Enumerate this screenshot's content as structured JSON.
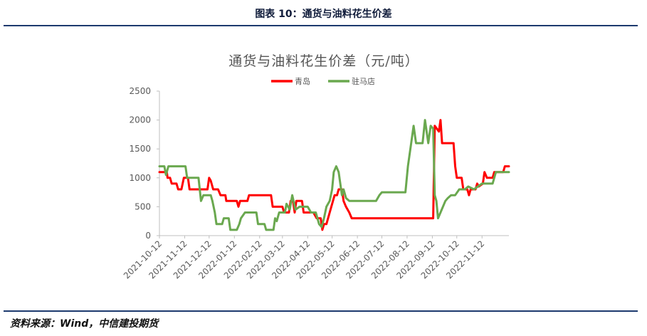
{
  "header": {
    "figure_title": "图表 10：通货与油料花生价差"
  },
  "footer": {
    "source": "资料来源：Wind，中信建投期货"
  },
  "chart_data": {
    "type": "line",
    "title": "通货与油料花生价差（元/吨）",
    "xlabel": "",
    "ylabel": "",
    "ylim": [
      0,
      2500
    ],
    "y_ticks": [
      0,
      500,
      1000,
      1500,
      2000,
      2500
    ],
    "x_range": [
      "2021-10-12",
      "2022-12-15"
    ],
    "x_tick_labels": [
      "2021-10-12",
      "2021-11-12",
      "2021-12-12",
      "2022-01-12",
      "2022-02-12",
      "2022-03-12",
      "2022-04-12",
      "2022-05-12",
      "2022-06-12",
      "2022-07-12",
      "2022-08-12",
      "2022-09-12",
      "2022-10-12",
      "2022-11-12"
    ],
    "grid": false,
    "legend_position": "top-center",
    "series": [
      {
        "name": "青岛",
        "color": "#ff0000",
        "points": [
          [
            "2021-10-12",
            1100
          ],
          [
            "2021-10-21",
            1100
          ],
          [
            "2021-10-22",
            1000
          ],
          [
            "2021-10-25",
            1000
          ],
          [
            "2021-10-27",
            900
          ],
          [
            "2021-11-02",
            900
          ],
          [
            "2021-11-04",
            800
          ],
          [
            "2021-11-08",
            800
          ],
          [
            "2021-11-11",
            1000
          ],
          [
            "2021-11-16",
            1000
          ],
          [
            "2021-11-18",
            800
          ],
          [
            "2021-12-10",
            800
          ],
          [
            "2021-12-12",
            1000
          ],
          [
            "2021-12-14",
            950
          ],
          [
            "2021-12-17",
            800
          ],
          [
            "2021-12-23",
            800
          ],
          [
            "2021-12-26",
            700
          ],
          [
            "2022-01-01",
            700
          ],
          [
            "2022-01-02",
            600
          ],
          [
            "2022-01-15",
            600
          ],
          [
            "2022-01-17",
            500
          ],
          [
            "2022-01-19",
            600
          ],
          [
            "2022-01-28",
            600
          ],
          [
            "2022-01-30",
            700
          ],
          [
            "2022-02-26",
            700
          ],
          [
            "2022-02-28",
            500
          ],
          [
            "2022-03-12",
            500
          ],
          [
            "2022-03-14",
            400
          ],
          [
            "2022-03-20",
            400
          ],
          [
            "2022-03-22",
            600
          ],
          [
            "2022-03-25",
            600
          ],
          [
            "2022-03-27",
            400
          ],
          [
            "2022-03-29",
            600
          ],
          [
            "2022-04-05",
            600
          ],
          [
            "2022-04-07",
            400
          ],
          [
            "2022-04-19",
            400
          ],
          [
            "2022-04-23",
            300
          ],
          [
            "2022-04-28",
            300
          ],
          [
            "2022-04-30",
            100
          ],
          [
            "2022-05-02",
            200
          ],
          [
            "2022-05-05",
            200
          ],
          [
            "2022-05-09",
            400
          ],
          [
            "2022-05-15",
            700
          ],
          [
            "2022-05-18",
            700
          ],
          [
            "2022-05-20",
            800
          ],
          [
            "2022-05-24",
            800
          ],
          [
            "2022-05-26",
            600
          ],
          [
            "2022-05-29",
            500
          ],
          [
            "2022-06-02",
            400
          ],
          [
            "2022-06-05",
            300
          ],
          [
            "2022-09-13",
            300
          ],
          [
            "2022-09-15",
            1900
          ],
          [
            "2022-09-20",
            1800
          ],
          [
            "2022-09-22",
            2000
          ],
          [
            "2022-09-24",
            1600
          ],
          [
            "2022-10-08",
            1600
          ],
          [
            "2022-10-10",
            1200
          ],
          [
            "2022-10-12",
            1000
          ],
          [
            "2022-10-18",
            1000
          ],
          [
            "2022-10-20",
            800
          ],
          [
            "2022-10-25",
            800
          ],
          [
            "2022-10-27",
            700
          ],
          [
            "2022-10-29",
            800
          ],
          [
            "2022-11-04",
            800
          ],
          [
            "2022-11-06",
            900
          ],
          [
            "2022-11-08",
            850
          ],
          [
            "2022-11-13",
            900
          ],
          [
            "2022-11-15",
            1100
          ],
          [
            "2022-11-18",
            1000
          ],
          [
            "2022-11-25",
            1000
          ],
          [
            "2022-11-27",
            1100
          ],
          [
            "2022-12-08",
            1100
          ],
          [
            "2022-12-10",
            1200
          ],
          [
            "2022-12-15",
            1200
          ]
        ]
      },
      {
        "name": "驻马店",
        "color": "#6aa84f",
        "points": [
          [
            "2021-10-12",
            1200
          ],
          [
            "2021-10-18",
            1200
          ],
          [
            "2021-10-20",
            1050
          ],
          [
            "2021-10-23",
            1200
          ],
          [
            "2021-11-13",
            1200
          ],
          [
            "2021-11-15",
            1000
          ],
          [
            "2021-11-29",
            1000
          ],
          [
            "2021-12-02",
            600
          ],
          [
            "2021-12-05",
            700
          ],
          [
            "2021-12-14",
            700
          ],
          [
            "2021-12-16",
            600
          ],
          [
            "2021-12-19",
            400
          ],
          [
            "2021-12-21",
            200
          ],
          [
            "2021-12-28",
            200
          ],
          [
            "2021-12-30",
            300
          ],
          [
            "2022-01-05",
            300
          ],
          [
            "2022-01-07",
            100
          ],
          [
            "2022-01-15",
            100
          ],
          [
            "2022-01-18",
            200
          ],
          [
            "2022-01-20",
            300
          ],
          [
            "2022-01-25",
            400
          ],
          [
            "2022-02-08",
            400
          ],
          [
            "2022-02-10",
            200
          ],
          [
            "2022-02-18",
            200
          ],
          [
            "2022-02-20",
            100
          ],
          [
            "2022-03-01",
            100
          ],
          [
            "2022-03-03",
            300
          ],
          [
            "2022-03-05",
            250
          ],
          [
            "2022-03-08",
            400
          ],
          [
            "2022-03-15",
            400
          ],
          [
            "2022-03-17",
            550
          ],
          [
            "2022-03-21",
            450
          ],
          [
            "2022-03-24",
            700
          ],
          [
            "2022-03-28",
            450
          ],
          [
            "2022-04-02",
            500
          ],
          [
            "2022-04-12",
            500
          ],
          [
            "2022-04-16",
            400
          ],
          [
            "2022-04-22",
            400
          ],
          [
            "2022-04-26",
            200
          ],
          [
            "2022-04-29",
            150
          ],
          [
            "2022-05-02",
            300
          ],
          [
            "2022-05-05",
            500
          ],
          [
            "2022-05-09",
            600
          ],
          [
            "2022-05-12",
            800
          ],
          [
            "2022-05-14",
            1100
          ],
          [
            "2022-05-17",
            1200
          ],
          [
            "2022-05-20",
            1100
          ],
          [
            "2022-05-24",
            700
          ],
          [
            "2022-05-26",
            800
          ],
          [
            "2022-05-29",
            650
          ],
          [
            "2022-06-02",
            600
          ],
          [
            "2022-07-05",
            600
          ],
          [
            "2022-07-09",
            700
          ],
          [
            "2022-07-12",
            750
          ],
          [
            "2022-08-10",
            750
          ],
          [
            "2022-08-13",
            1200
          ],
          [
            "2022-08-17",
            1600
          ],
          [
            "2022-08-20",
            1900
          ],
          [
            "2022-08-23",
            1600
          ],
          [
            "2022-08-31",
            1600
          ],
          [
            "2022-09-03",
            2000
          ],
          [
            "2022-09-07",
            1600
          ],
          [
            "2022-09-10",
            1900
          ],
          [
            "2022-09-13",
            1850
          ],
          [
            "2022-09-15",
            700
          ],
          [
            "2022-09-17",
            600
          ],
          [
            "2022-09-19",
            300
          ],
          [
            "2022-09-22",
            400
          ],
          [
            "2022-09-28",
            600
          ],
          [
            "2022-10-01",
            650
          ],
          [
            "2022-10-05",
            700
          ],
          [
            "2022-10-10",
            700
          ],
          [
            "2022-10-15",
            800
          ],
          [
            "2022-10-22",
            800
          ],
          [
            "2022-10-26",
            850
          ],
          [
            "2022-11-02",
            800
          ],
          [
            "2022-11-12",
            900
          ],
          [
            "2022-11-25",
            900
          ],
          [
            "2022-11-29",
            1100
          ],
          [
            "2022-12-15",
            1100
          ]
        ]
      }
    ]
  }
}
